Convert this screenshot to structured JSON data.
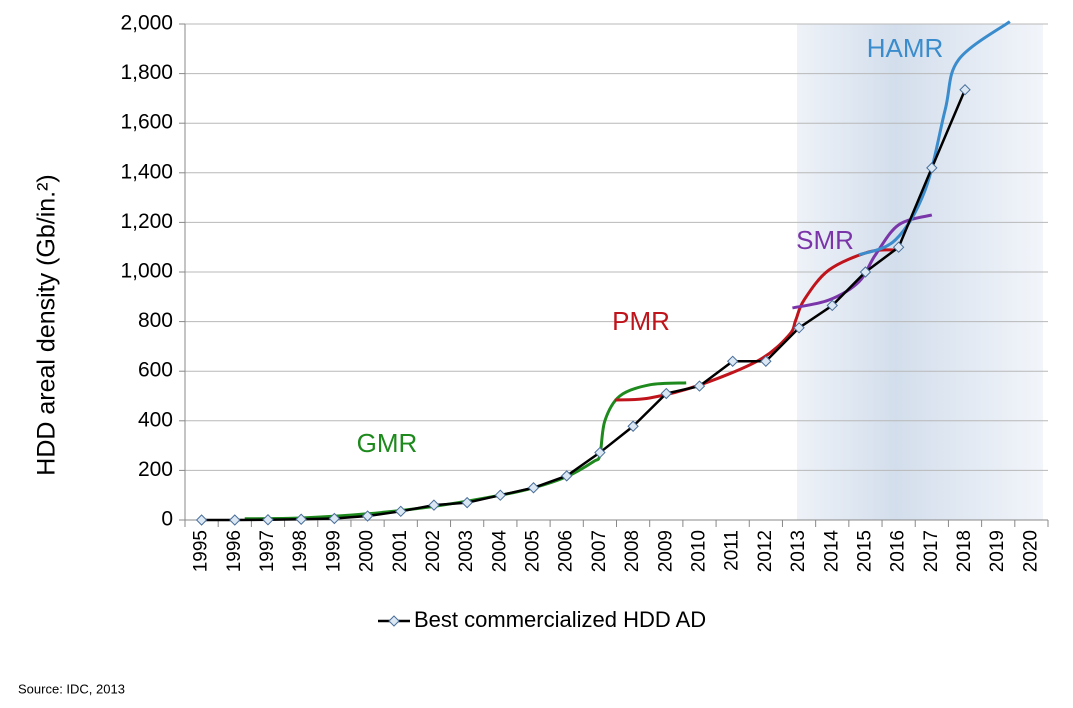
{
  "chart_data": {
    "type": "line",
    "y_label": "HDD areal density (Gb/in.²)",
    "categories": [
      "1995",
      "1996",
      "1997",
      "1998",
      "1999",
      "2000",
      "2001",
      "2002",
      "2003",
      "2004",
      "2005",
      "2006",
      "2007",
      "2008",
      "2009",
      "2010",
      "2011",
      "2012",
      "2013",
      "2014",
      "2015",
      "2016",
      "2017",
      "2018",
      "2019",
      "2020"
    ],
    "series": [
      {
        "name": "Best commercialized HDD AD",
        "color": "#000000",
        "marker_fill": "#dbe8f4",
        "marker_stroke": "#4a6f9a",
        "values": [
          0,
          0,
          1,
          3,
          6,
          16,
          35,
          60,
          70,
          100,
          130,
          178,
          272,
          378,
          510,
          540,
          640,
          640,
          775,
          865,
          1000,
          1100,
          1420,
          1735,
          null,
          null
        ]
      }
    ],
    "technology_curves": [
      {
        "name": "GMR",
        "color": "#1e8a1e",
        "x": [
          1996.3,
          1998,
          2000,
          2002,
          2004,
          2005,
          2006,
          2006.8,
          2007.0,
          2007.15,
          2007.6,
          2008.5,
          2009.6
        ],
        "values": [
          5,
          8,
          25,
          55,
          100,
          130,
          175,
          235,
          262,
          400,
          500,
          545,
          553
        ]
      },
      {
        "name": "PMR",
        "color": "#c0141c",
        "x": [
          2007.45,
          2008.5,
          2010,
          2011.8,
          2012.7,
          2012.9,
          2013.15,
          2013.9,
          2015.1,
          2015.9
        ],
        "values": [
          484,
          492,
          544,
          645,
          746,
          806,
          887,
          1008,
          1081,
          1089
        ]
      },
      {
        "name": "SMR",
        "color": "#7a35a8",
        "x": [
          2012.8,
          2013.9,
          2014.8,
          2015.3,
          2016.0,
          2017.0
        ],
        "values": [
          855,
          887,
          960,
          1069,
          1190,
          1230
        ]
      },
      {
        "name": "HAMR",
        "color": "#3a8ccc",
        "x": [
          2014.8,
          2015.9,
          2016.8,
          2017.4,
          2017.8,
          2019.35
        ],
        "values": [
          1069,
          1129,
          1331,
          1653,
          1855,
          2010
        ]
      }
    ],
    "ylim": [
      0,
      2000
    ],
    "yticks": [
      0,
      200,
      400,
      600,
      800,
      {
        "value": 1000,
        "label": "1,000"
      },
      {
        "value": 1200,
        "label": "1,200"
      },
      {
        "value": 1400,
        "label": "1,400"
      },
      {
        "value": 1600,
        "label": "1,600"
      },
      {
        "value": 1800,
        "label": "1,800"
      },
      {
        "value": 2000,
        "label": "2,000"
      }
    ],
    "grid": true,
    "legend": "bottom",
    "source": "Source: IDC, 2013"
  }
}
